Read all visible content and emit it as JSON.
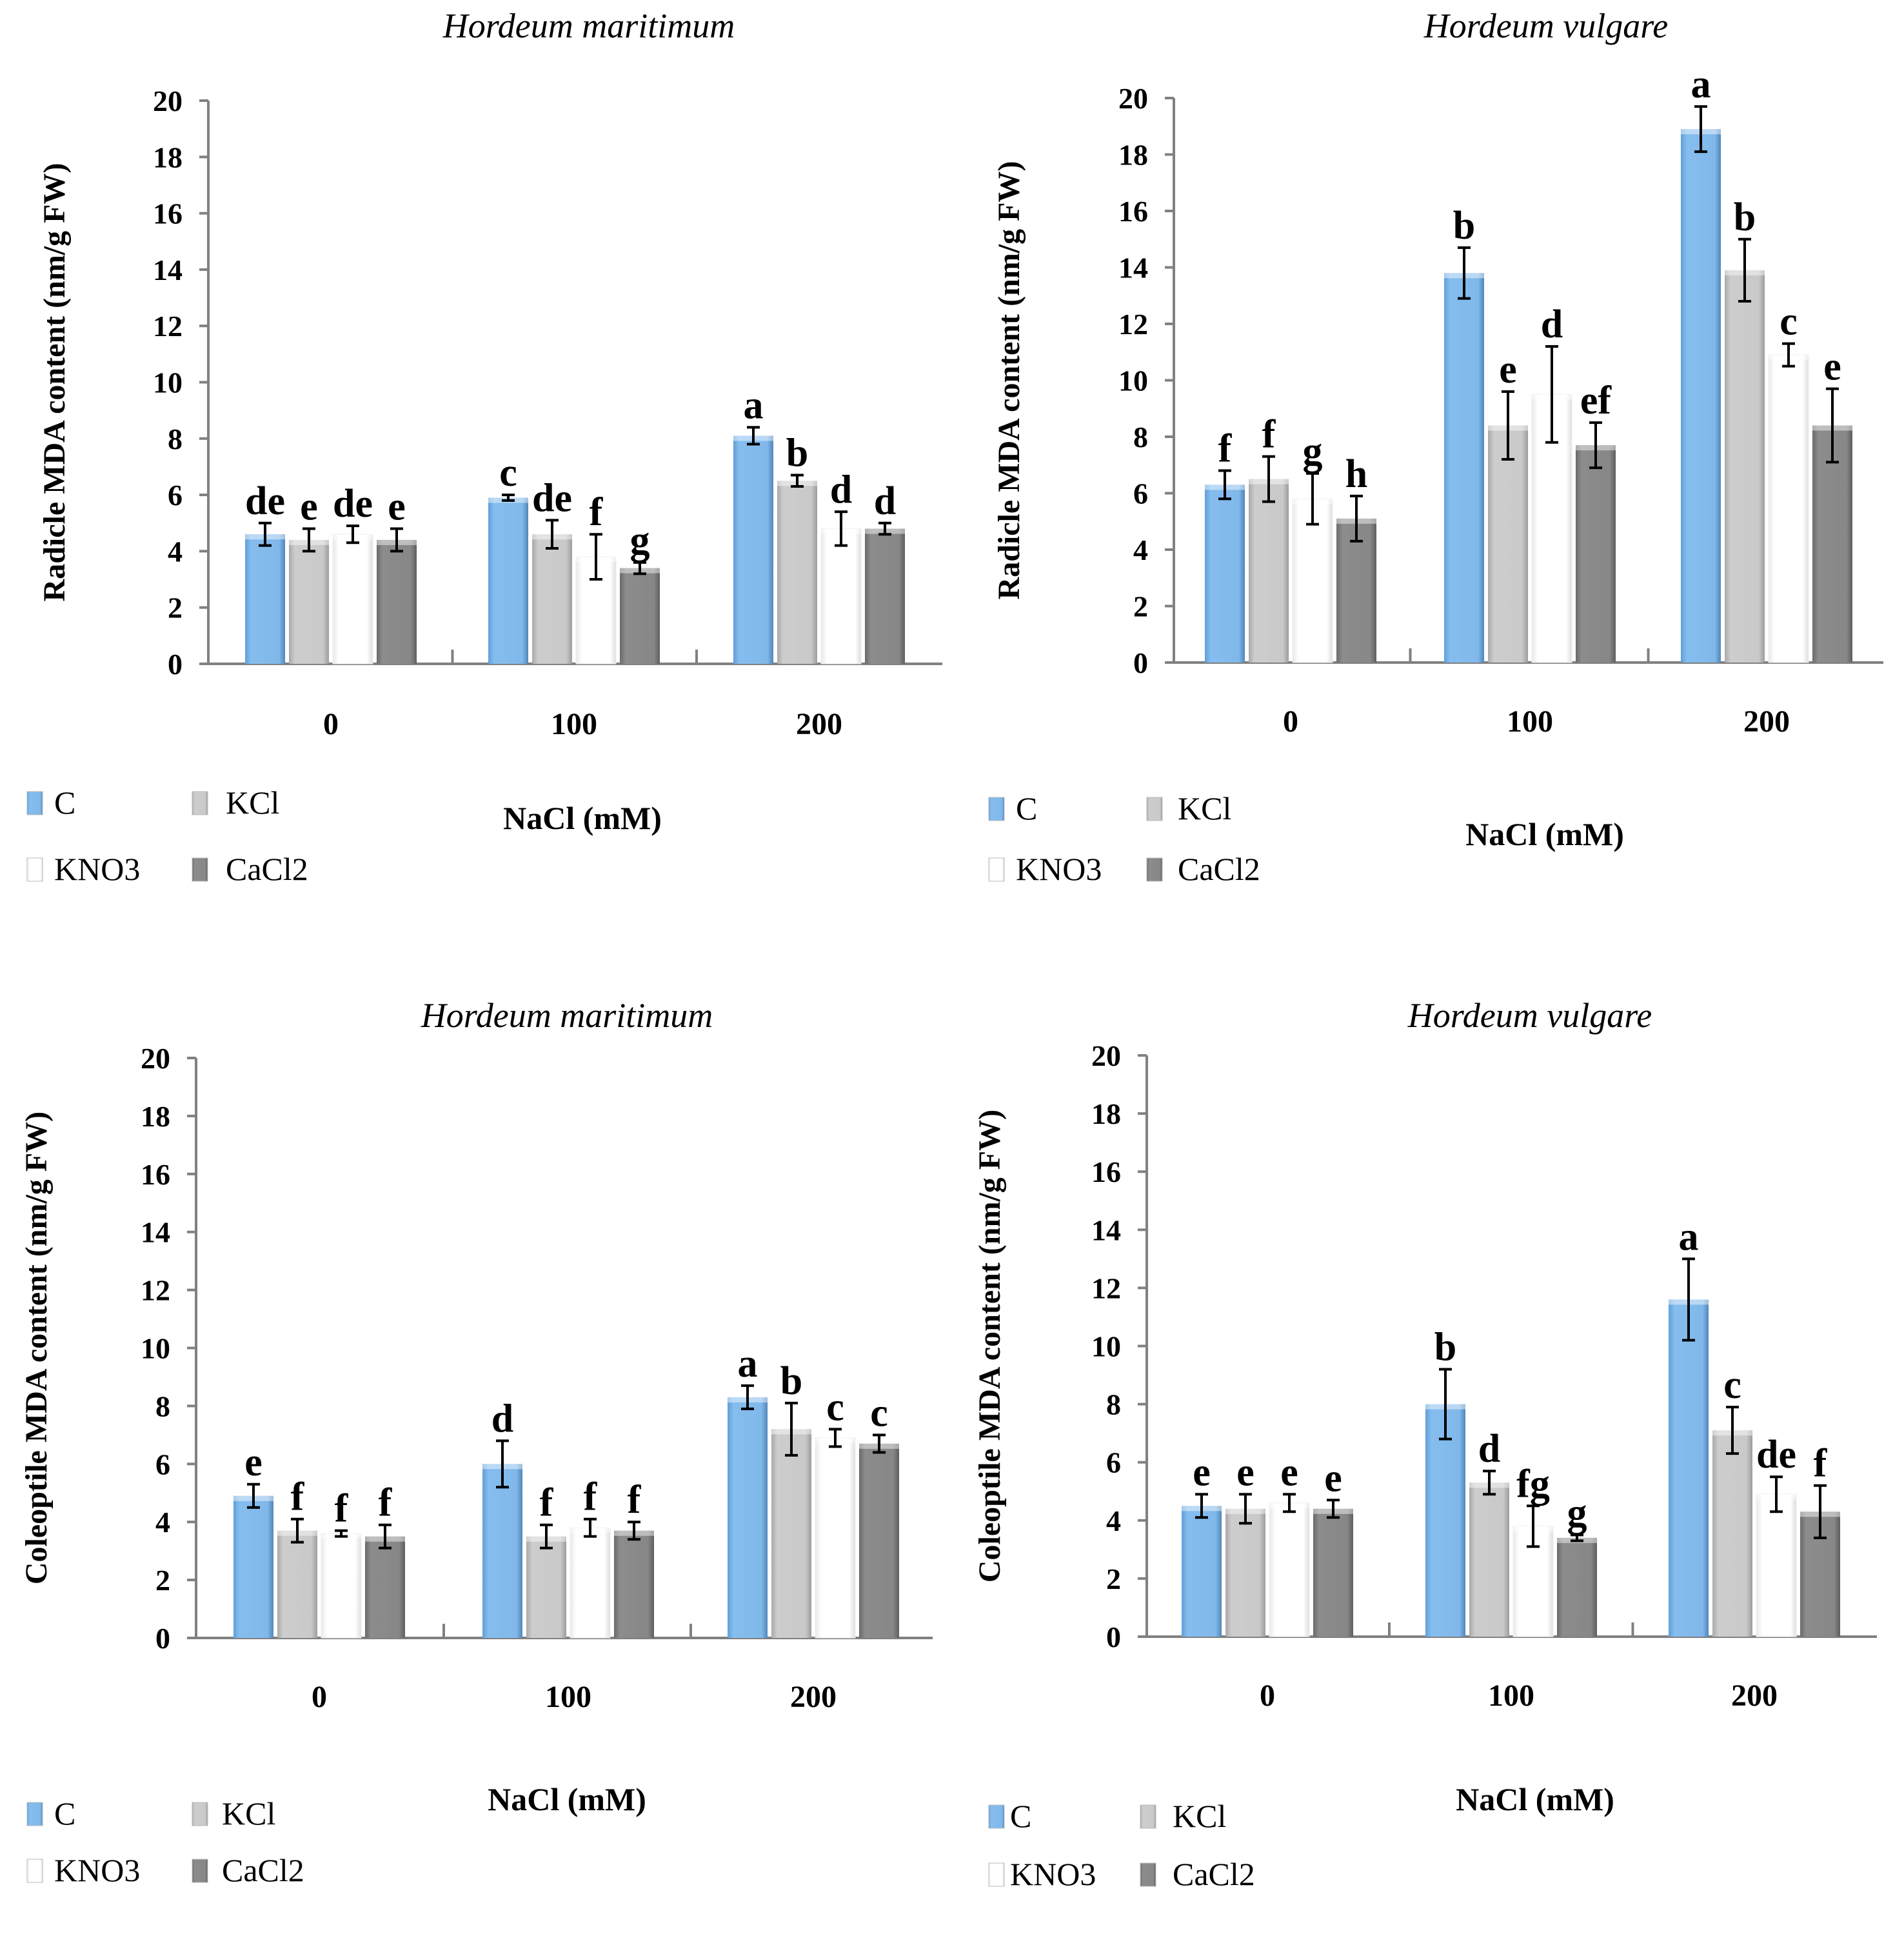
{
  "legend": [
    "C",
    "KCl",
    "KNO3",
    "CaCl2"
  ],
  "colors": {
    "C": "#7fbaec",
    "KCl": "#c8c8c8",
    "KNO3": "#ffffff",
    "CaCl2": "#878787"
  },
  "chart_data": [
    {
      "type": "bar",
      "title": "Hordeum maritimum",
      "xlabel": "NaCl (mM)",
      "ylabel": "Radicle MDA content (nm/g FW)",
      "categories": [
        "0",
        "100",
        "200"
      ],
      "ylim": [
        0,
        20
      ],
      "yticks": [
        "0",
        "2",
        "4",
        "6",
        "8",
        "10",
        "12",
        "14",
        "16",
        "18",
        "20"
      ],
      "series": [
        {
          "name": "C",
          "values": [
            4.6,
            5.9,
            8.1
          ],
          "errors": [
            0.4,
            0.1,
            0.3
          ],
          "letters": [
            "de",
            "c",
            "a"
          ]
        },
        {
          "name": "KCl",
          "values": [
            4.4,
            4.6,
            6.5
          ],
          "errors": [
            0.4,
            0.5,
            0.2
          ],
          "letters": [
            "e",
            "de",
            "b"
          ]
        },
        {
          "name": "KNO3",
          "values": [
            4.6,
            3.8,
            4.8
          ],
          "errors": [
            0.3,
            0.8,
            0.6
          ],
          "letters": [
            "de",
            "f",
            "d"
          ]
        },
        {
          "name": "CaCl2",
          "values": [
            4.4,
            3.4,
            4.8
          ],
          "errors": [
            0.4,
            0.2,
            0.2
          ],
          "letters": [
            "e",
            "g",
            "d"
          ]
        }
      ]
    },
    {
      "type": "bar",
      "title": "Hordeum vulgare",
      "xlabel": "NaCl (mM)",
      "ylabel": "Radicle MDA content (nm/g FW)",
      "categories": [
        "0",
        "100",
        "200"
      ],
      "ylim": [
        0,
        20
      ],
      "yticks": [
        "0",
        "2",
        "4",
        "6",
        "8",
        "10",
        "12",
        "14",
        "16",
        "18",
        "20"
      ],
      "series": [
        {
          "name": "C",
          "values": [
            6.3,
            13.8,
            18.9
          ],
          "errors": [
            0.5,
            0.9,
            0.8
          ],
          "letters": [
            "f",
            "b",
            "a"
          ]
        },
        {
          "name": "KCl",
          "values": [
            6.5,
            8.4,
            13.9
          ],
          "errors": [
            0.8,
            1.2,
            1.1
          ],
          "letters": [
            "f",
            "e",
            "b"
          ]
        },
        {
          "name": "KNO3",
          "values": [
            5.8,
            9.5,
            10.9
          ],
          "errors": [
            0.9,
            1.7,
            0.4
          ],
          "letters": [
            "g",
            "d",
            "c"
          ]
        },
        {
          "name": "CaCl2",
          "values": [
            5.1,
            7.7,
            8.4
          ],
          "errors": [
            0.8,
            0.8,
            1.3
          ],
          "letters": [
            "h",
            "ef",
            "e"
          ]
        }
      ]
    },
    {
      "type": "bar",
      "title": "Hordeum maritimum",
      "xlabel": "NaCl (mM)",
      "ylabel": "Coleoptile MDA content  (nm/g FW)",
      "categories": [
        "0",
        "100",
        "200"
      ],
      "ylim": [
        0,
        20
      ],
      "yticks": [
        "0",
        "2",
        "4",
        "6",
        "8",
        "10",
        "12",
        "14",
        "16",
        "18",
        "20"
      ],
      "series": [
        {
          "name": "C",
          "values": [
            4.9,
            6.0,
            8.3
          ],
          "errors": [
            0.4,
            0.8,
            0.4
          ],
          "letters": [
            "e",
            "d",
            "a"
          ]
        },
        {
          "name": "KCl",
          "values": [
            3.7,
            3.5,
            7.2
          ],
          "errors": [
            0.4,
            0.4,
            0.9
          ],
          "letters": [
            "f",
            "f",
            "b"
          ]
        },
        {
          "name": "KNO3",
          "values": [
            3.6,
            3.8,
            6.9
          ],
          "errors": [
            0.1,
            0.3,
            0.3
          ],
          "letters": [
            "f",
            "f",
            "c"
          ]
        },
        {
          "name": "CaCl2",
          "values": [
            3.5,
            3.7,
            6.7
          ],
          "errors": [
            0.4,
            0.3,
            0.3
          ],
          "letters": [
            "f",
            "f",
            "c"
          ]
        }
      ]
    },
    {
      "type": "bar",
      "title": "Hordeum vulgare",
      "xlabel": "NaCl (mM)",
      "ylabel": "Coleoptile MDA content  (nm/g FW)",
      "categories": [
        "0",
        "100",
        "200"
      ],
      "ylim": [
        0,
        20
      ],
      "yticks": [
        "0",
        "2",
        "4",
        "6",
        "8",
        "10",
        "12",
        "14",
        "16",
        "18",
        "20"
      ],
      "series": [
        {
          "name": "C",
          "values": [
            4.5,
            8.0,
            11.6
          ],
          "errors": [
            0.4,
            1.2,
            1.4
          ],
          "letters": [
            "e",
            "b",
            "a"
          ]
        },
        {
          "name": "KCl",
          "values": [
            4.4,
            5.3,
            7.1
          ],
          "errors": [
            0.5,
            0.4,
            0.8
          ],
          "letters": [
            "e",
            "d",
            "c"
          ]
        },
        {
          "name": "KNO3",
          "values": [
            4.6,
            3.8,
            4.9
          ],
          "errors": [
            0.3,
            0.7,
            0.6
          ],
          "letters": [
            "e",
            "fg",
            "de"
          ]
        },
        {
          "name": "CaCl2",
          "values": [
            4.4,
            3.4,
            4.3
          ],
          "errors": [
            0.3,
            0.1,
            0.9
          ],
          "letters": [
            "e",
            "g",
            "f"
          ]
        }
      ]
    }
  ]
}
